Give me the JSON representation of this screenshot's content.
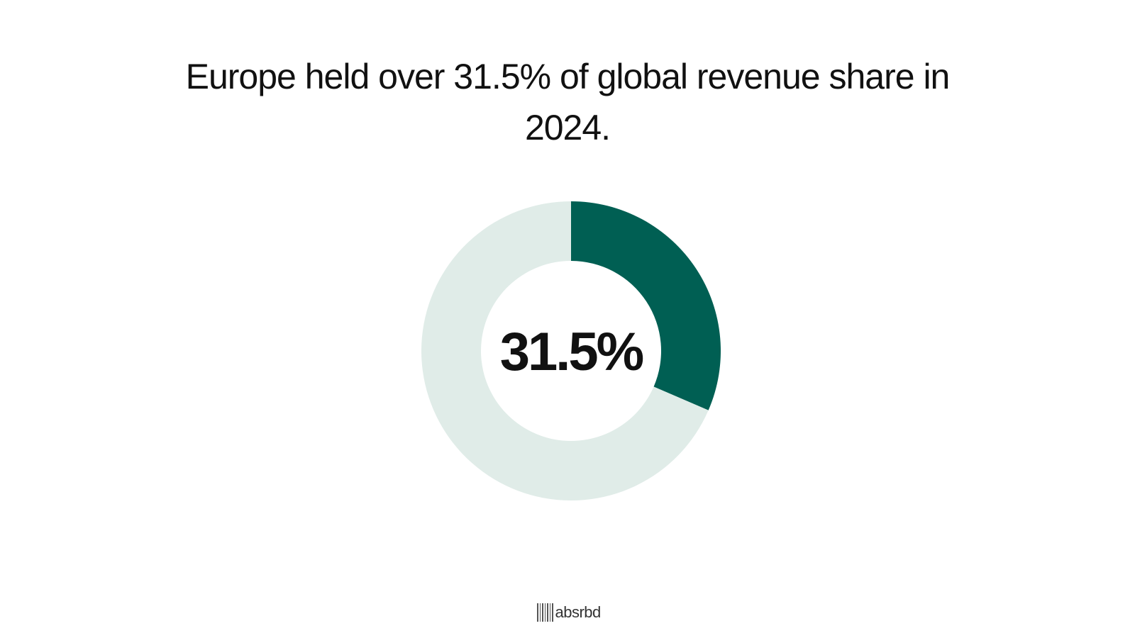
{
  "title": "Europe held over 31.5% of global revenue share in 2024.",
  "chart_data": {
    "type": "pie",
    "style": "donut",
    "center_label": "31.5%",
    "slices": [
      {
        "value": 31.5,
        "color": "#005f53"
      },
      {
        "value": 68.5,
        "color": "#e0ece8"
      }
    ]
  },
  "brand": {
    "name": "absrbd",
    "icon": "barcode-icon"
  }
}
